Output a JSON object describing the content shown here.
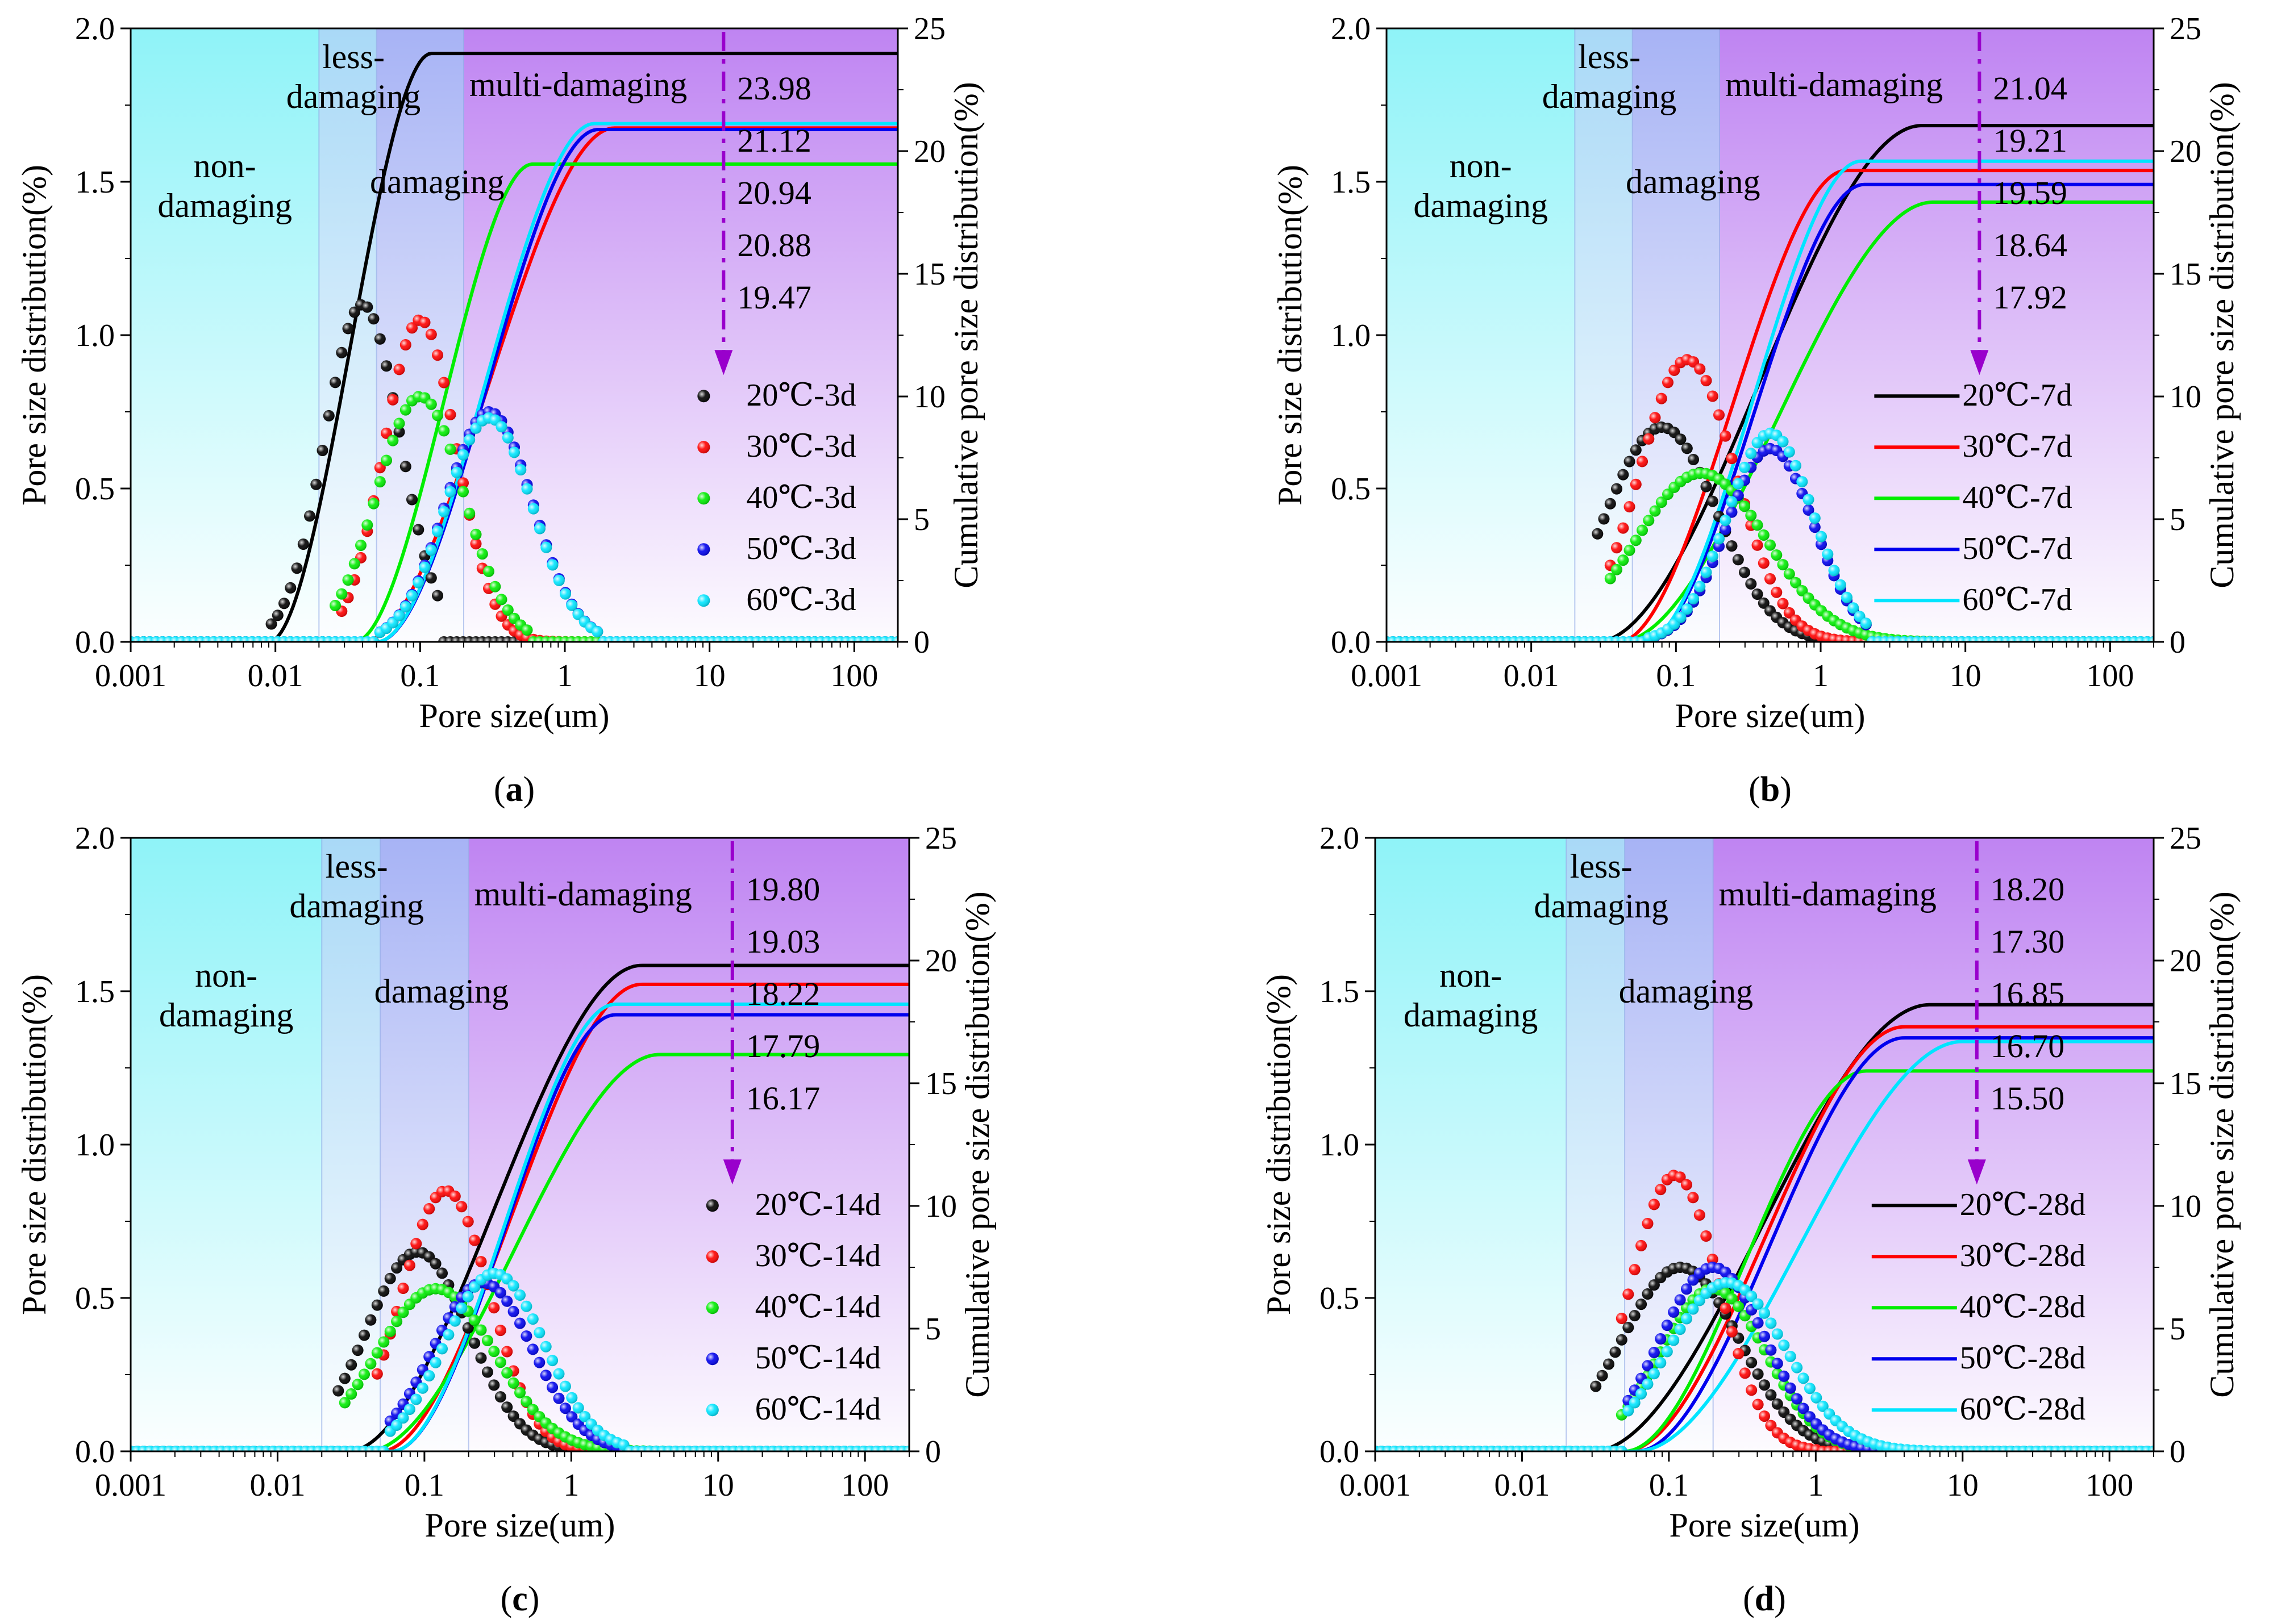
{
  "colors": {
    "20C": "#000000",
    "30C": "#ff0000",
    "40C": "#00ee00",
    "50C": "#0000ee",
    "60C": "#00e5ff",
    "marker_arrow": "#9900cc",
    "zone_non": "#8ff3f8",
    "zone_less": "#a9d9f7",
    "zone_dam": "#a7b3f5",
    "zone_multi": "#bf84f2"
  },
  "zones": {
    "non": "non-\ndamaging",
    "less": "less-\ndamaging",
    "dam": "damaging",
    "multi": "multi-damaging"
  },
  "zone_bounds": [
    0.001,
    0.02,
    0.05,
    0.2,
    200
  ],
  "chart_data": [
    {
      "type": "scatter",
      "label": "(a)",
      "xlabel": "Pore size(um)",
      "ylabel": "Pore size distribution(%)",
      "y2label": "Cumulative pore size distribution(%)",
      "xscale": "log",
      "xlim": [
        0.001,
        200
      ],
      "ylim": [
        0,
        2.0
      ],
      "y2lim": [
        0,
        25
      ],
      "xticks": [
        "0.001",
        "0.01",
        "0.1",
        "1",
        "10",
        "100"
      ],
      "yticks": [
        "0.0",
        "0.5",
        "1.0",
        "1.5",
        "2.0"
      ],
      "y2ticks": [
        "0",
        "5",
        "10",
        "15",
        "20",
        "25"
      ],
      "legend_style": "markers",
      "legend_placement": "lower-right",
      "cumulative_values": [
        "23.98",
        "21.12",
        "20.94",
        "20.88",
        "19.47"
      ],
      "series": [
        {
          "name": "20℃-3d",
          "key": "20C",
          "peak_x": 0.04,
          "peak_y": 1.1,
          "width": 0.26,
          "start": 0.009,
          "end": 0.14,
          "rise_start": 0.009,
          "rise_end": 0.12,
          "total": 23.98
        },
        {
          "name": "30℃-3d",
          "key": "30C",
          "peak_x": 0.1,
          "peak_y": 1.05,
          "width": 0.25,
          "start": 0.028,
          "end": 4,
          "rise_start": 0.04,
          "rise_end": 2.2,
          "total": 20.94
        },
        {
          "name": "40℃-3d",
          "key": "40C",
          "peak_x": 0.1,
          "peak_y": 0.8,
          "width": 0.3,
          "start": 0.025,
          "end": 0.6,
          "rise_start": 0.035,
          "rise_end": 0.6,
          "total": 19.47
        },
        {
          "name": "50℃-3d",
          "key": "50C",
          "peak_x": 0.3,
          "peak_y": 0.75,
          "width": 0.3,
          "start": 0.05,
          "end": 1.7,
          "rise_start": 0.05,
          "rise_end": 1.7,
          "total": 20.88
        },
        {
          "name": "60℃-3d",
          "key": "60C",
          "peak_x": 0.3,
          "peak_y": 0.73,
          "width": 0.3,
          "start": 0.05,
          "end": 1.7,
          "rise_start": 0.05,
          "rise_end": 1.6,
          "total": 21.12
        }
      ]
    },
    {
      "type": "scatter",
      "label": "(b)",
      "xlabel": "Pore size(um)",
      "ylabel": "Pore size distribution(%)",
      "y2label": "Cumulative pore size distribution(%)",
      "xscale": "log",
      "xlim": [
        0.001,
        200
      ],
      "ylim": [
        0,
        2.0
      ],
      "y2lim": [
        0,
        25
      ],
      "xticks": [
        "0.001",
        "0.01",
        "0.1",
        "1",
        "10",
        "100"
      ],
      "yticks": [
        "0.0",
        "0.5",
        "1.0",
        "1.5",
        "2.0"
      ],
      "y2ticks": [
        "0",
        "5",
        "10",
        "15",
        "20",
        "25"
      ],
      "legend_style": "lines",
      "legend_placement": "lower-right",
      "cumulative_values": [
        "21.04",
        "19.21",
        "19.59",
        "18.64",
        "17.92"
      ],
      "series": [
        {
          "name": "20℃-7d",
          "key": "20C",
          "peak_x": 0.08,
          "peak_y": 0.7,
          "width": 0.38,
          "start": 0.028,
          "end": 2,
          "rise_start": 0.028,
          "rise_end": 5,
          "total": 21.04
        },
        {
          "name": "30℃-7d",
          "key": "30C",
          "peak_x": 0.12,
          "peak_y": 0.92,
          "width": 0.33,
          "start": 0.035,
          "end": 2,
          "rise_start": 0.04,
          "rise_end": 1.5,
          "total": 19.21
        },
        {
          "name": "40℃-7d",
          "key": "40C",
          "peak_x": 0.15,
          "peak_y": 0.55,
          "width": 0.45,
          "start": 0.035,
          "end": 7,
          "rise_start": 0.04,
          "rise_end": 6,
          "total": 17.92
        },
        {
          "name": "50℃-7d",
          "key": "50C",
          "peak_x": 0.45,
          "peak_y": 0.63,
          "width": 0.3,
          "start": 0.06,
          "end": 2.2,
          "rise_start": 0.06,
          "rise_end": 2,
          "total": 18.64
        },
        {
          "name": "60℃-7d",
          "key": "60C",
          "peak_x": 0.45,
          "peak_y": 0.68,
          "width": 0.3,
          "start": 0.06,
          "end": 2.2,
          "rise_start": 0.06,
          "rise_end": 1.9,
          "total": 19.59
        }
      ]
    },
    {
      "type": "scatter",
      "label": "(c)",
      "xlabel": "Pore size(um)",
      "ylabel": "Pore size distribution(%)",
      "y2label": "Cumulative pore size distribution(%)",
      "xscale": "log",
      "xlim": [
        0.001,
        200
      ],
      "ylim": [
        0,
        2.0
      ],
      "y2lim": [
        0,
        25
      ],
      "xticks": [
        "0.001",
        "0.01",
        "0.1",
        "1",
        "10",
        "100"
      ],
      "yticks": [
        "0.0",
        "0.5",
        "1.0",
        "1.5",
        "2.0"
      ],
      "y2ticks": [
        "0",
        "5",
        "10",
        "15",
        "20",
        "25"
      ],
      "legend_style": "markers",
      "legend_placement": "lower-right",
      "cumulative_values": [
        "19.80",
        "19.03",
        "18.22",
        "17.79",
        "16.17"
      ],
      "series": [
        {
          "name": "20℃-14d",
          "key": "20C",
          "peak_x": 0.09,
          "peak_y": 0.65,
          "width": 0.35,
          "start": 0.025,
          "end": 1.5,
          "rise_start": 0.03,
          "rise_end": 3,
          "total": 19.8
        },
        {
          "name": "30℃-14d",
          "key": "30C",
          "peak_x": 0.14,
          "peak_y": 0.85,
          "width": 0.3,
          "start": 0.045,
          "end": 6,
          "rise_start": 0.05,
          "rise_end": 3,
          "total": 19.03
        },
        {
          "name": "40℃-14d",
          "key": "40C",
          "peak_x": 0.12,
          "peak_y": 0.53,
          "width": 0.4,
          "start": 0.028,
          "end": 10,
          "rise_start": 0.04,
          "rise_end": 4,
          "total": 16.17
        },
        {
          "name": "50℃-14d",
          "key": "50C",
          "peak_x": 0.25,
          "peak_y": 0.55,
          "width": 0.34,
          "start": 0.055,
          "end": 2.2,
          "rise_start": 0.06,
          "rise_end": 2,
          "total": 17.79
        },
        {
          "name": "60℃-14d",
          "key": "60C",
          "peak_x": 0.3,
          "peak_y": 0.58,
          "width": 0.34,
          "start": 0.055,
          "end": 2.4,
          "rise_start": 0.06,
          "rise_end": 2,
          "total": 18.22
        }
      ]
    },
    {
      "type": "scatter",
      "label": "(d)",
      "xlabel": "Pore size(um)",
      "ylabel": "Pore size distribution(%)",
      "y2label": "Cumulative pore size distribution(%)",
      "xscale": "log",
      "xlim": [
        0.001,
        200
      ],
      "ylim": [
        0,
        2.0
      ],
      "y2lim": [
        0,
        25
      ],
      "xticks": [
        "0.001",
        "0.01",
        "0.1",
        "1",
        "10",
        "100"
      ],
      "yticks": [
        "0.0",
        "0.5",
        "1.0",
        "1.5",
        "2.0"
      ],
      "y2ticks": [
        "0",
        "5",
        "10",
        "15",
        "20",
        "25"
      ],
      "legend_style": "lines",
      "legend_placement": "lower-right",
      "cumulative_values": [
        "18.20",
        "17.30",
        "16.85",
        "16.70",
        "15.50"
      ],
      "series": [
        {
          "name": "20℃-28d",
          "key": "20C",
          "peak_x": 0.12,
          "peak_y": 0.6,
          "width": 0.4,
          "start": 0.03,
          "end": 4,
          "rise_start": 0.03,
          "rise_end": 6,
          "total": 18.2
        },
        {
          "name": "30℃-28d",
          "key": "30C",
          "peak_x": 0.11,
          "peak_y": 0.9,
          "width": 0.3,
          "start": 0.045,
          "end": 1.1,
          "rise_start": 0.05,
          "rise_end": 4,
          "total": 17.3
        },
        {
          "name": "40℃-28d",
          "key": "40C",
          "peak_x": 0.2,
          "peak_y": 0.53,
          "width": 0.36,
          "start": 0.045,
          "end": 2.5,
          "rise_start": 0.05,
          "rise_end": 2.2,
          "total": 15.5
        },
        {
          "name": "50℃-28d",
          "key": "50C",
          "peak_x": 0.2,
          "peak_y": 0.6,
          "width": 0.36,
          "start": 0.05,
          "end": 4,
          "rise_start": 0.06,
          "rise_end": 4,
          "total": 16.85
        },
        {
          "name": "60℃-28d",
          "key": "60C",
          "peak_x": 0.25,
          "peak_y": 0.55,
          "width": 0.4,
          "start": 0.05,
          "end": 10,
          "rise_start": 0.06,
          "rise_end": 10,
          "total": 16.7
        }
      ]
    }
  ]
}
